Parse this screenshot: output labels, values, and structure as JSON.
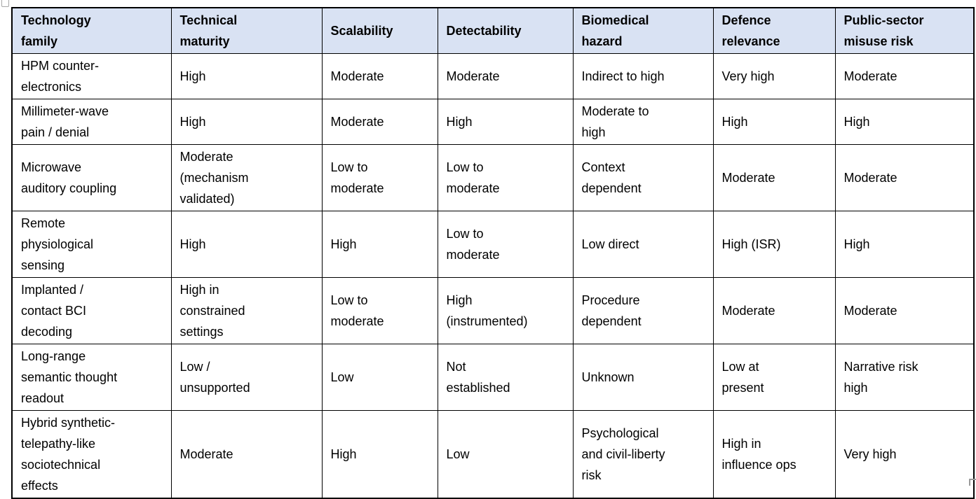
{
  "table": {
    "colors": {
      "header_bg": "#d9e2f3",
      "border": "#000000",
      "text": "#000000"
    },
    "columns": [
      "Technology\nfamily",
      "Technical\nmaturity",
      "Scalability",
      "Detectability",
      "Biomedical\nhazard",
      "Defence\nrelevance",
      "Public-sector\nmisuse risk"
    ],
    "rows": [
      [
        "HPM counter-\nelectronics",
        "High",
        "Moderate",
        "Moderate",
        "Indirect to high",
        "Very high",
        "Moderate"
      ],
      [
        "Millimeter-wave\npain / denial",
        "High",
        "Moderate",
        "High",
        "Moderate to\nhigh",
        "High",
        "High"
      ],
      [
        "Microwave\nauditory coupling",
        "Moderate\n(mechanism\nvalidated)",
        "Low to\nmoderate",
        "Low to\nmoderate",
        "Context\ndependent",
        "Moderate",
        "Moderate"
      ],
      [
        "Remote\nphysiological\nsensing",
        "High",
        "High",
        "Low to\nmoderate",
        "Low direct",
        "High (ISR)",
        "High"
      ],
      [
        "Implanted /\ncontact BCI\ndecoding",
        "High in\nconstrained\nsettings",
        "Low to\nmoderate",
        "High\n(instrumented)",
        "Procedure\ndependent",
        "Moderate",
        "Moderate"
      ],
      [
        "Long-range\nsemantic thought\nreadout",
        "Low /\nunsupported",
        "Low",
        "Not\nestablished",
        "Unknown",
        "Low at\npresent",
        "Narrative risk\nhigh"
      ],
      [
        "Hybrid synthetic-\ntelepathy-like\nsociotechnical\neffects",
        "Moderate",
        "High",
        "Low",
        "Psychological\nand civil-liberty\nrisk",
        "High in\ninfluence ops",
        "Very high"
      ]
    ]
  }
}
